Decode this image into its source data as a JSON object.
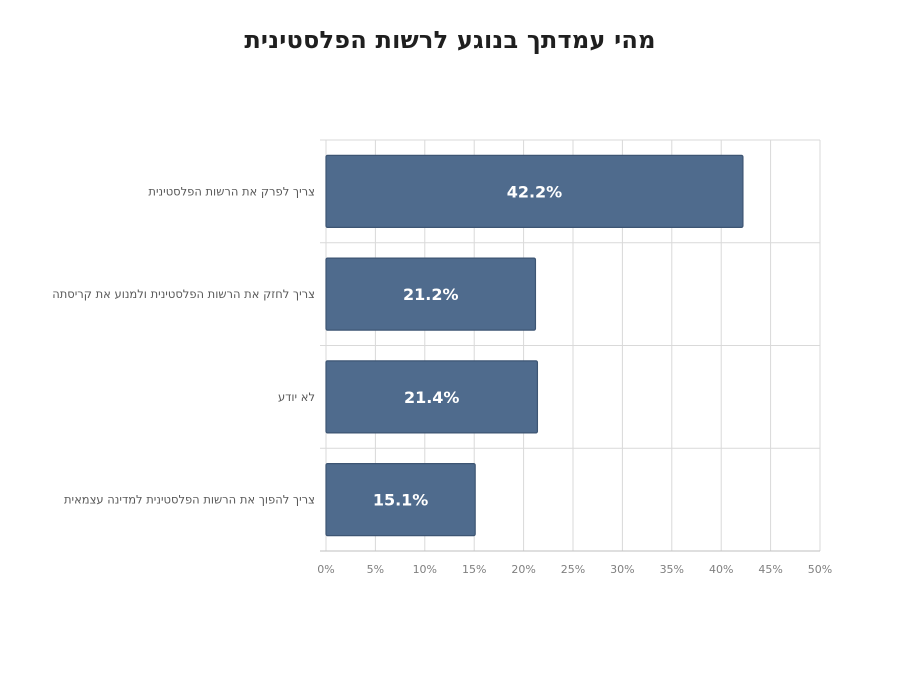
{
  "chart_data": {
    "type": "bar",
    "orientation": "horizontal",
    "title": "מהי עמדתך בנוגע לרשות הפלסטינית",
    "categories": [
      "צריך לפרק את הרשות הפלסטינית",
      "צריך לחזק את הרשות הפלסטינית ולמנוע את קריסתה",
      "לא יודע",
      "צריך להפוך את הרשות הפלסטינית למדינה עצמאית"
    ],
    "values": [
      42.2,
      21.2,
      21.4,
      15.1
    ],
    "data_labels": [
      "42.2%",
      "21.2%",
      "21.4%",
      "15.1%"
    ],
    "xlim": [
      0,
      50
    ],
    "x_ticks": [
      0,
      5,
      10,
      15,
      20,
      25,
      30,
      35,
      40,
      45,
      50
    ],
    "x_tick_labels": [
      "0%",
      "5%",
      "10%",
      "15%",
      "20%",
      "25%",
      "30%",
      "35%",
      "40%",
      "45%",
      "50%"
    ],
    "grid": true,
    "bar_color": "#4f6b8d",
    "bar_border_color": "#3d5573",
    "grid_color": "#d9d9d9",
    "legend": "none"
  }
}
